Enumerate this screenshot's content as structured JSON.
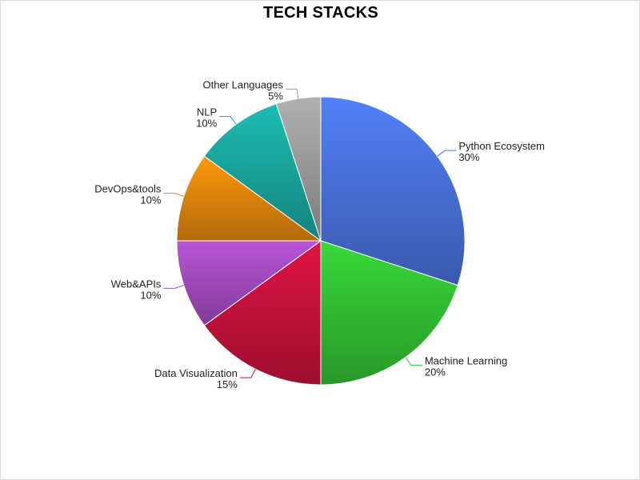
{
  "chart_data": {
    "type": "pie",
    "title": "TECH STACKS",
    "start_angle_deg": 0,
    "direction": "clockwise",
    "slices": [
      {
        "name": "Python Ecosystem",
        "value": 30,
        "label": "30%",
        "color": "#4a72dd"
      },
      {
        "name": "Machine Learning",
        "value": 20,
        "label": "20%",
        "color": "#33c233"
      },
      {
        "name": "Data Visualization",
        "value": 15,
        "label": "15%",
        "color": "#c8123c"
      },
      {
        "name": "Web&APIs",
        "value": 10,
        "label": "10%",
        "color": "#a54cc0"
      },
      {
        "name": "DevOps&tools",
        "value": 10,
        "label": "10%",
        "color": "#e6880c"
      },
      {
        "name": "NLP",
        "value": 10,
        "label": "10%",
        "color": "#1aa8a0"
      },
      {
        "name": "Other Languages",
        "value": 5,
        "label": "5%",
        "color": "#9e9e9e"
      }
    ]
  }
}
